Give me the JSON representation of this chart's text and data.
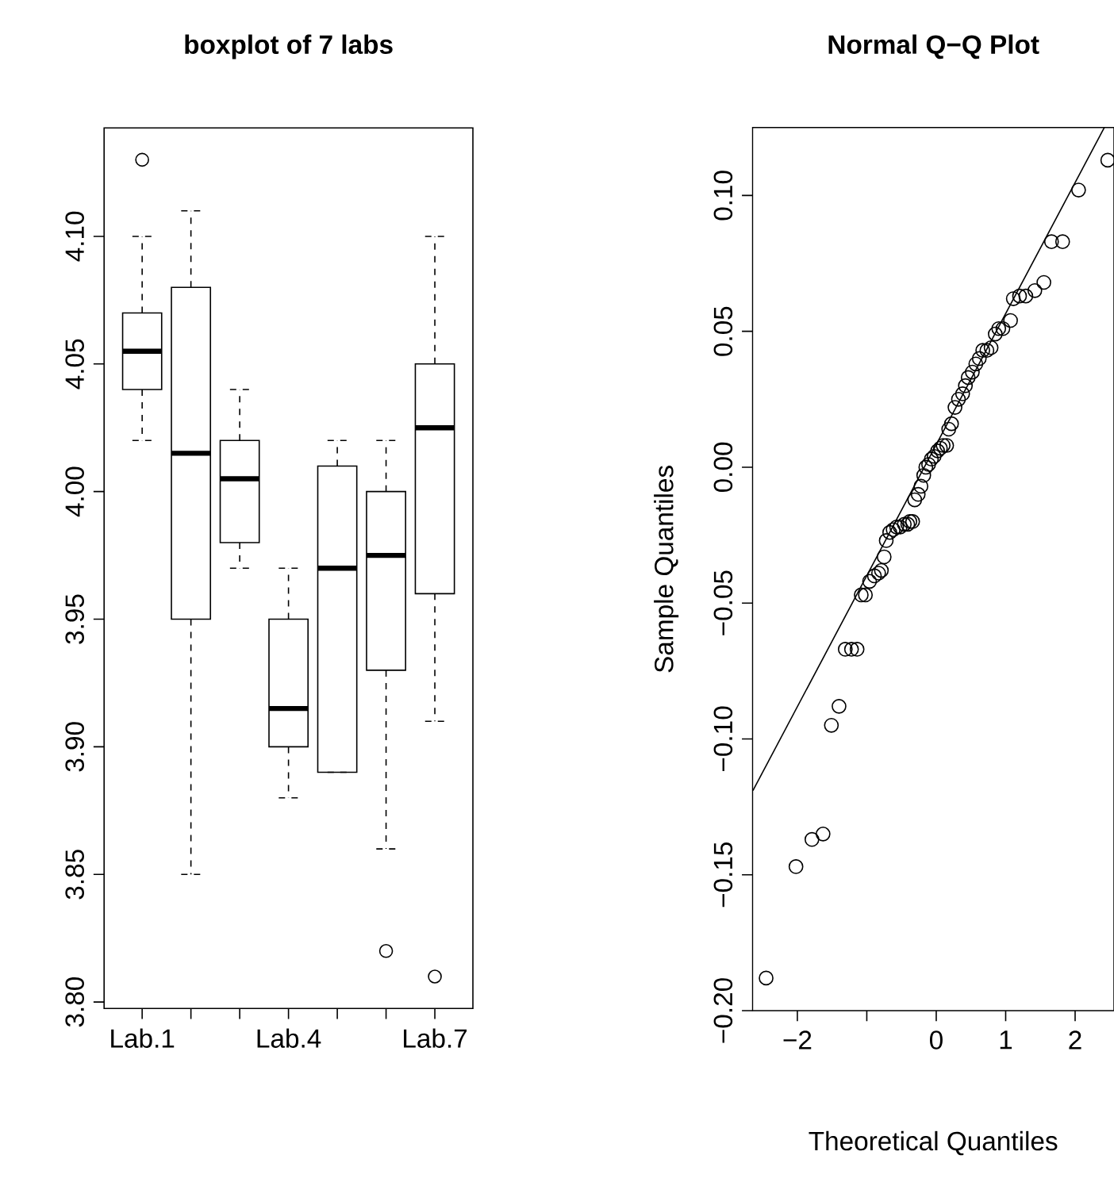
{
  "chart_data": [
    {
      "type": "box",
      "title": "boxplot of 7 labs",
      "categories": [
        "Lab.1",
        null,
        null,
        "Lab.4",
        null,
        null,
        "Lab.7"
      ],
      "boxes": [
        {
          "low": 4.02,
          "q1": 4.04,
          "median": 4.055,
          "q3": 4.07,
          "high": 4.1,
          "outliers": [
            4.13
          ]
        },
        {
          "low": 3.85,
          "q1": 3.95,
          "median": 4.015,
          "q3": 4.08,
          "high": 4.11
        },
        {
          "low": 3.97,
          "q1": 3.98,
          "median": 4.005,
          "q3": 4.02,
          "high": 4.04
        },
        {
          "low": 3.88,
          "q1": 3.9,
          "median": 3.915,
          "q3": 3.95,
          "high": 3.97
        },
        {
          "low": 3.89,
          "q1": 3.89,
          "median": 3.97,
          "q3": 4.01,
          "high": 4.02
        },
        {
          "low": 3.86,
          "q1": 3.93,
          "median": 3.975,
          "q3": 4.0,
          "high": 4.02,
          "outliers": [
            3.82
          ]
        },
        {
          "low": 3.91,
          "q1": 3.96,
          "median": 4.025,
          "q3": 4.05,
          "high": 4.1,
          "outliers": [
            3.81
          ]
        }
      ],
      "color": "#000000",
      "ylim": [
        3.7975,
        4.1425
      ],
      "yticks": [
        {
          "value": 3.8,
          "label": "3.80"
        },
        {
          "value": 3.85,
          "label": "3.85"
        },
        {
          "value": 3.9,
          "label": "3.90"
        },
        {
          "value": 3.95,
          "label": "3.95"
        },
        {
          "value": 4.0,
          "label": "4.00"
        },
        {
          "value": 4.05,
          "label": "4.05"
        },
        {
          "value": 4.1,
          "label": "4.10"
        }
      ]
    },
    {
      "type": "scatter",
      "title": "Normal Q−Q Plot",
      "xlabel": "Theoretical Quantiles",
      "ylabel": "Sample Quantiles",
      "series": [
        {
          "type": "scatter",
          "color": "#000000",
          "marker": "circle",
          "x": [
            -2.45,
            -2.02,
            -1.79,
            -1.63,
            -1.51,
            -1.4,
            -1.31,
            -1.22,
            -1.14,
            -1.08,
            -1.02,
            -0.96,
            -0.89,
            -0.83,
            -0.79,
            -0.75,
            -0.72,
            -0.67,
            -0.62,
            -0.57,
            -0.52,
            -0.46,
            -0.41,
            -0.38,
            -0.34,
            -0.31,
            -0.26,
            -0.22,
            -0.18,
            -0.15,
            -0.11,
            -0.07,
            -0.03,
            0.02,
            0.06,
            0.1,
            0.15,
            0.18,
            0.22,
            0.27,
            0.32,
            0.38,
            0.42,
            0.46,
            0.52,
            0.57,
            0.62,
            0.67,
            0.73,
            0.79,
            0.85,
            0.9,
            0.96,
            1.07,
            1.11,
            1.2,
            1.29,
            1.42,
            1.55,
            1.66,
            1.82,
            2.05,
            2.47
          ],
          "values": [
            -0.188,
            -0.147,
            -0.137,
            -0.135,
            -0.095,
            -0.088,
            -0.067,
            -0.067,
            -0.067,
            -0.047,
            -0.047,
            -0.042,
            -0.04,
            -0.039,
            -0.038,
            -0.033,
            -0.027,
            -0.024,
            -0.023,
            -0.022,
            -0.022,
            -0.021,
            -0.021,
            -0.02,
            -0.02,
            -0.012,
            -0.01,
            -0.007,
            -0.003,
            0.0,
            0.001,
            0.003,
            0.004,
            0.006,
            0.007,
            0.008,
            0.008,
            0.014,
            0.016,
            0.022,
            0.025,
            0.027,
            0.03,
            0.033,
            0.035,
            0.038,
            0.04,
            0.043,
            0.043,
            0.044,
            0.049,
            0.051,
            0.051,
            0.054,
            0.062,
            0.063,
            0.063,
            0.065,
            0.068,
            0.083,
            0.083,
            0.102,
            0.113
          ]
        },
        {
          "type": "line",
          "color": "#000000",
          "line_style": "solid",
          "x": [
            -2.64,
            2.42
          ],
          "values": [
            -0.119,
            0.125
          ]
        }
      ],
      "xlim": [
        -2.646,
        2.56
      ],
      "ylim": [
        -0.2,
        0.125
      ],
      "xticks": [
        {
          "value": -2,
          "label": "−2"
        },
        {
          "value": -1,
          "label": null
        },
        0,
        1,
        2
      ],
      "yticks": [
        {
          "value": -0.2,
          "label": "−0.20"
        },
        {
          "value": -0.15,
          "label": "−0.15"
        },
        {
          "value": -0.1,
          "label": "−0.10"
        },
        {
          "value": -0.05,
          "label": "−0.05"
        },
        {
          "value": 0.0,
          "label": "0.00"
        },
        {
          "value": 0.05,
          "label": "0.05"
        },
        {
          "value": 0.1,
          "label": "0.10"
        }
      ]
    }
  ]
}
